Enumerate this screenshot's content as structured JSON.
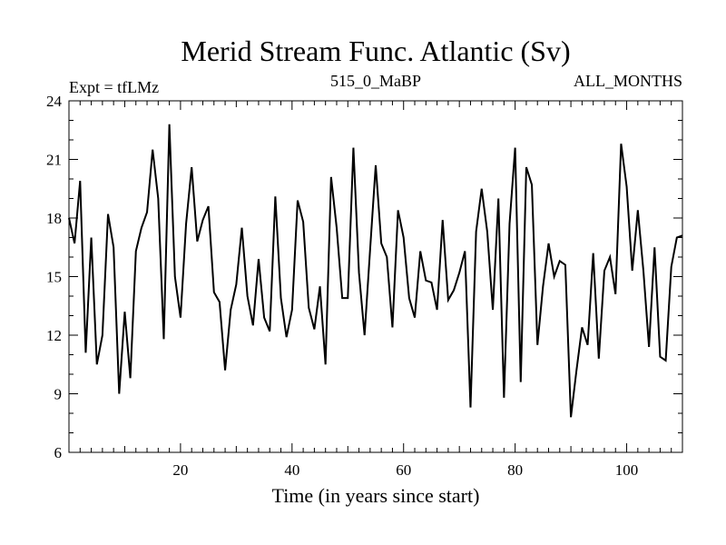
{
  "chart_data": {
    "type": "line",
    "title": "Merid Stream Func. Atlantic (Sv)",
    "subtitle_left": "Expt = tfLMz",
    "subtitle_center": "515_0_MaBP",
    "subtitle_right": "ALL_MONTHS",
    "xlabel": "Time (in years since start)",
    "ylabel": "",
    "xlim": [
      0,
      110
    ],
    "ylim": [
      6,
      24
    ],
    "xticks": [
      20,
      40,
      60,
      80,
      100
    ],
    "yticks": [
      6,
      9,
      12,
      15,
      18,
      21,
      24
    ],
    "grid": false,
    "line_color": "#000000",
    "series": [
      {
        "name": "Merid Stream Func. Atlantic",
        "x": [
          0,
          1,
          2,
          3,
          4,
          5,
          6,
          7,
          8,
          9,
          10,
          11,
          12,
          13,
          14,
          15,
          16,
          17,
          18,
          19,
          20,
          21,
          22,
          23,
          24,
          25,
          26,
          27,
          28,
          29,
          30,
          31,
          32,
          33,
          34,
          35,
          36,
          37,
          38,
          39,
          40,
          41,
          42,
          43,
          44,
          45,
          46,
          47,
          48,
          49,
          50,
          51,
          52,
          53,
          54,
          55,
          56,
          57,
          58,
          59,
          60,
          61,
          62,
          63,
          64,
          65,
          66,
          67,
          68,
          69,
          70,
          71,
          72,
          73,
          74,
          75,
          76,
          77,
          78,
          79,
          80,
          81,
          82,
          83,
          84,
          85,
          86,
          87,
          88,
          89,
          90,
          91,
          92,
          93,
          94,
          95,
          96,
          97,
          98,
          99,
          100,
          101,
          102,
          103,
          104,
          105,
          106,
          107,
          108,
          109,
          110
        ],
        "values": [
          18.0,
          16.7,
          19.9,
          11.1,
          17.0,
          10.5,
          12.0,
          18.2,
          16.5,
          9.0,
          13.2,
          9.8,
          16.3,
          17.5,
          18.3,
          21.5,
          19.0,
          11.8,
          22.8,
          15.0,
          12.9,
          17.7,
          20.6,
          16.8,
          17.9,
          18.6,
          14.2,
          13.7,
          10.2,
          13.3,
          14.6,
          17.5,
          14.0,
          12.5,
          15.9,
          12.9,
          12.2,
          19.1,
          13.9,
          11.9,
          13.3,
          18.9,
          17.8,
          13.4,
          12.3,
          14.5,
          10.5,
          20.1,
          17.5,
          13.9,
          13.9,
          21.6,
          15.2,
          12.0,
          16.4,
          20.7,
          16.7,
          16.0,
          12.4,
          18.4,
          17.0,
          13.9,
          12.9,
          16.3,
          14.8,
          14.7,
          13.3,
          17.9,
          13.8,
          14.3,
          15.2,
          16.3,
          8.3,
          17.3,
          19.5,
          17.3,
          13.3,
          19.0,
          8.8,
          17.7,
          21.6,
          9.6,
          20.6,
          19.7,
          11.5,
          14.5,
          16.7,
          15.0,
          15.8,
          15.6,
          7.8,
          10.2,
          12.4,
          11.5,
          16.2,
          10.8,
          15.3,
          16.0,
          14.1,
          21.8,
          19.6,
          15.3,
          18.4,
          15.3,
          11.4,
          16.5,
          10.9,
          10.7,
          15.5,
          17.0,
          17.1
        ]
      }
    ]
  }
}
